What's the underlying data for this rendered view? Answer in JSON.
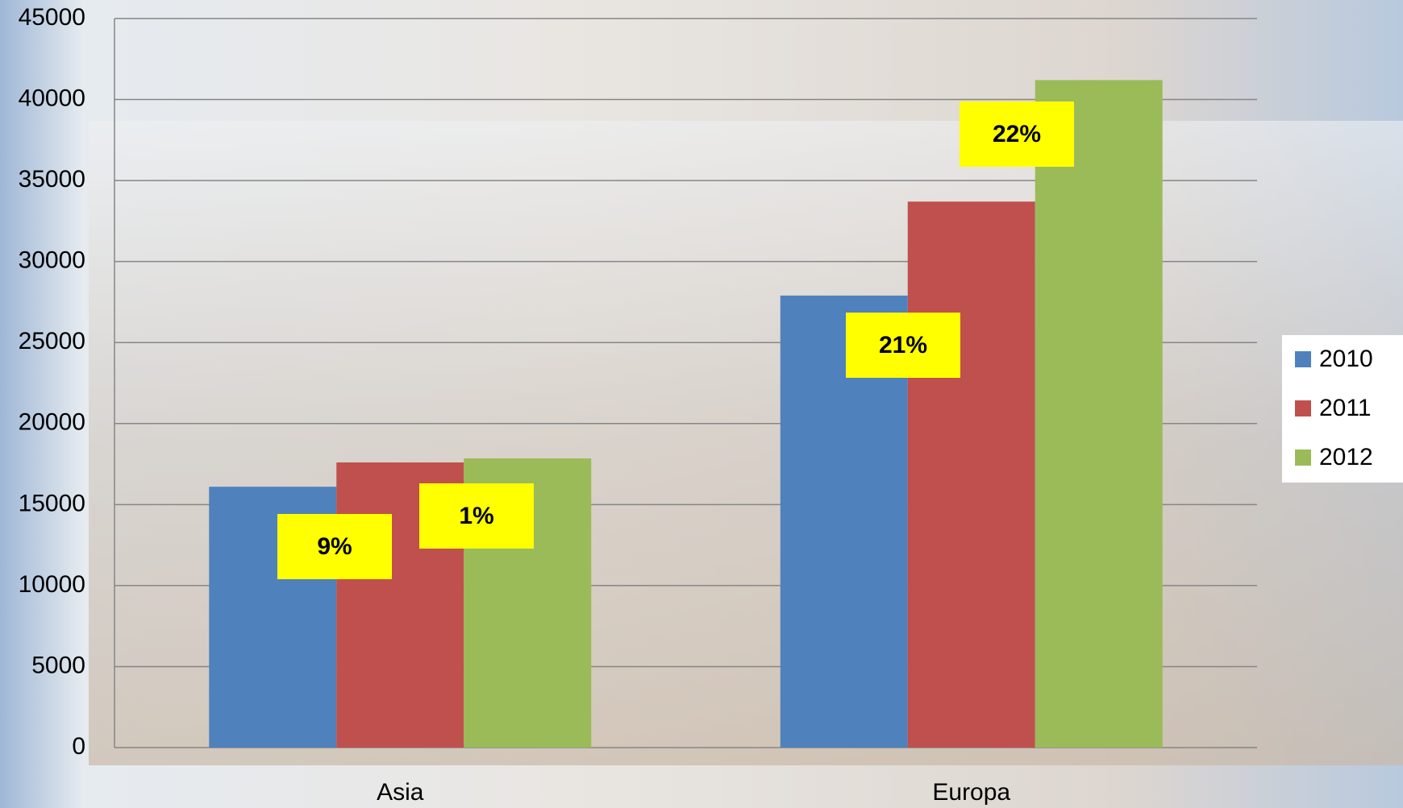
{
  "chart_data": {
    "type": "bar",
    "categories": [
      "Asia",
      "Europa"
    ],
    "series": [
      {
        "name": "2010",
        "color": "#4f81bd",
        "values": [
          16100,
          27900
        ]
      },
      {
        "name": "2011",
        "color": "#c0504d",
        "values": [
          17600,
          33700
        ]
      },
      {
        "name": "2012",
        "color": "#9bbb59",
        "values": [
          17850,
          41200
        ]
      }
    ],
    "ylim": [
      0,
      45000
    ],
    "yticks": [
      0,
      5000,
      10000,
      15000,
      20000,
      25000,
      30000,
      35000,
      40000,
      45000
    ],
    "grid": true,
    "legend": "right",
    "annotations": [
      "9%",
      "1%",
      "21%",
      "22%"
    ]
  }
}
